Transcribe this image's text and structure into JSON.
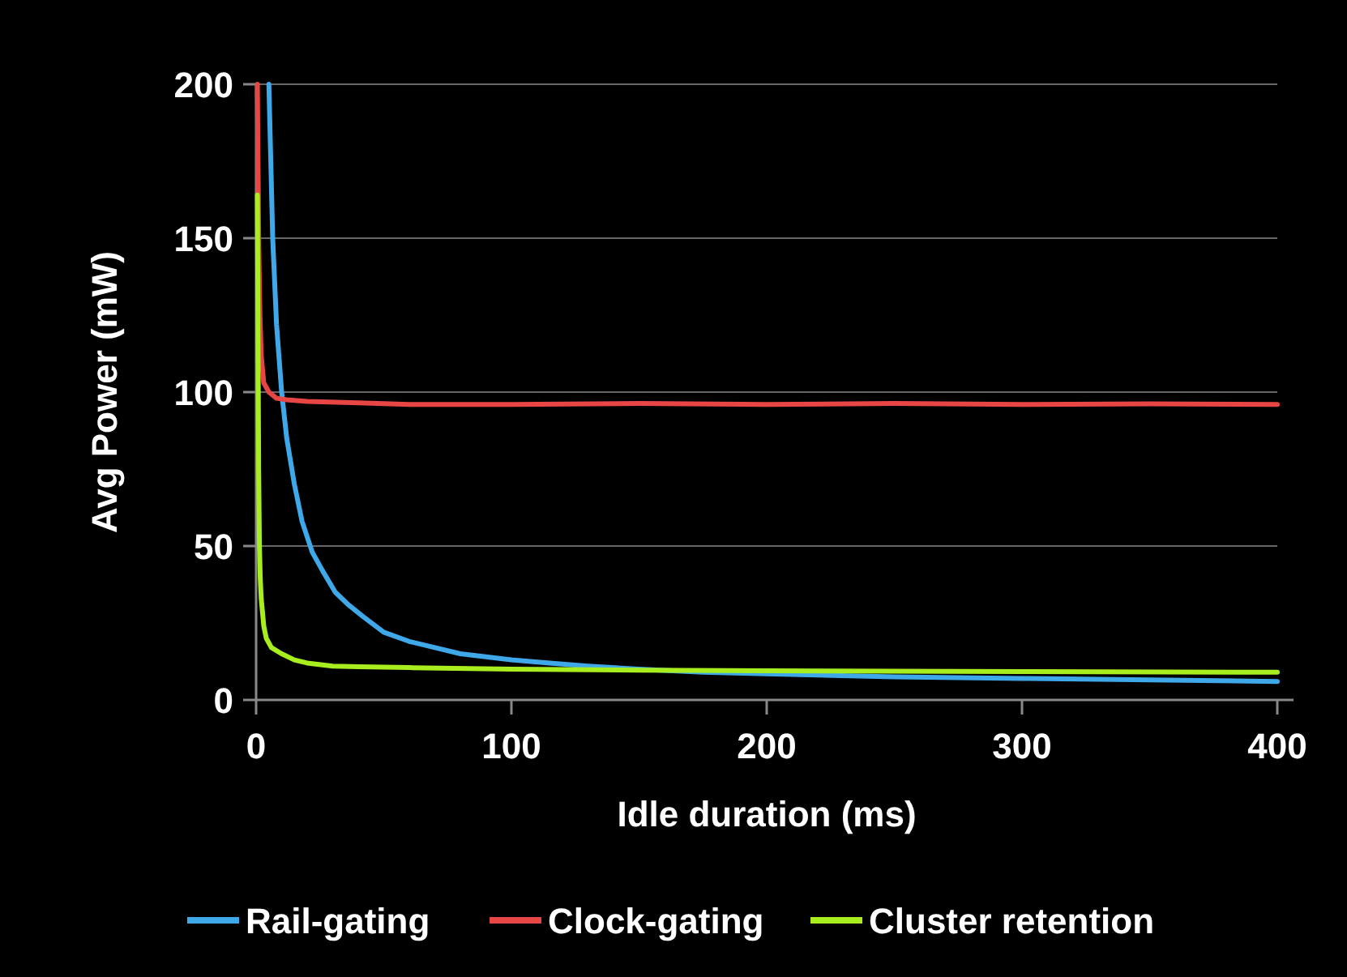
{
  "chart_data": {
    "type": "line",
    "xlabel": "Idle duration (ms)",
    "ylabel": "Avg Power (mW)",
    "xlim": [
      0,
      400
    ],
    "ylim": [
      0,
      200
    ],
    "xticks": [
      0,
      100,
      200,
      300,
      400
    ],
    "yticks": [
      0,
      50,
      100,
      150,
      200
    ],
    "grid": "y",
    "legend": "bottom",
    "marker": "none",
    "line_style": "solid",
    "series": [
      {
        "name": "Rail-gating",
        "color": "#3ea8e8",
        "x": [
          5,
          6.5,
          8,
          10,
          12,
          15,
          18,
          22,
          26,
          31,
          36,
          42,
          50,
          60,
          70,
          80,
          90,
          100,
          115,
          130,
          150,
          175,
          200,
          250,
          300,
          350,
          400
        ],
        "values": [
          200,
          150,
          122,
          100,
          85,
          70,
          58,
          48,
          42,
          35,
          31,
          27,
          22,
          19,
          17,
          15,
          14,
          13,
          12,
          11,
          10,
          9,
          8.5,
          7.5,
          7,
          6.5,
          6
        ]
      },
      {
        "name": "Clock-gating",
        "color": "#e84545",
        "x": [
          0.5,
          1,
          1.5,
          2,
          3,
          5,
          8,
          12,
          20,
          40,
          60,
          100,
          150,
          200,
          250,
          300,
          350,
          400
        ],
        "values": [
          200,
          150,
          125,
          112,
          103,
          100,
          98,
          97.5,
          97,
          96.5,
          96,
          96,
          96.3,
          96,
          96.3,
          96,
          96.2,
          96
        ]
      },
      {
        "name": "Cluster retention",
        "color": "#a8ee1e",
        "x": [
          0.5,
          0.8,
          1,
          1.3,
          1.6,
          2,
          3,
          4,
          6,
          10,
          15,
          20,
          30,
          40,
          60,
          100,
          150,
          200,
          300,
          400
        ],
        "values": [
          164,
          110,
          75,
          50,
          40,
          33,
          24,
          20,
          17,
          15,
          13,
          12,
          11,
          10.8,
          10.5,
          10,
          9.7,
          9.5,
          9.2,
          9
        ]
      }
    ]
  }
}
